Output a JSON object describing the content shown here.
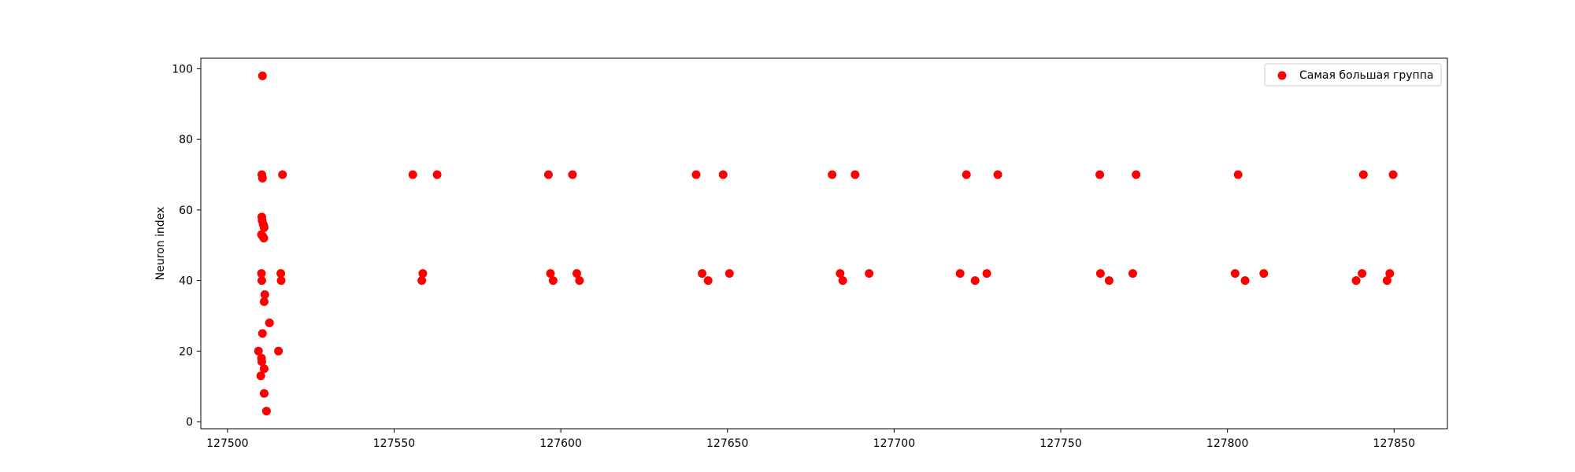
{
  "chart_data": {
    "type": "scatter",
    "title": "",
    "xlabel": "",
    "ylabel": "Neuron index",
    "xlim": [
      127492,
      127866
    ],
    "ylim": [
      -2,
      103
    ],
    "xticks": [
      127500,
      127550,
      127600,
      127650,
      127700,
      127750,
      127800,
      127850
    ],
    "yticks": [
      0,
      20,
      40,
      60,
      80,
      100
    ],
    "grid": false,
    "legend_position": "upper right",
    "series": [
      {
        "name": "Самая большая группа",
        "color": "#ff0000",
        "points": [
          [
            127510.5,
            98
          ],
          [
            127510.3,
            70
          ],
          [
            127510.5,
            69
          ],
          [
            127516.5,
            70
          ],
          [
            127510.3,
            58
          ],
          [
            127510.4,
            57
          ],
          [
            127510.7,
            56
          ],
          [
            127510.9,
            55.5
          ],
          [
            127511.0,
            55
          ],
          [
            127510.2,
            53
          ],
          [
            127510.6,
            52.5
          ],
          [
            127510.9,
            52
          ],
          [
            127510.2,
            42
          ],
          [
            127510.3,
            40
          ],
          [
            127516.0,
            42
          ],
          [
            127516.1,
            40
          ],
          [
            127511.2,
            36
          ],
          [
            127511.0,
            34
          ],
          [
            127512.6,
            28
          ],
          [
            127510.5,
            25
          ],
          [
            127509.3,
            20
          ],
          [
            127515.3,
            20
          ],
          [
            127510.2,
            18
          ],
          [
            127510.3,
            17
          ],
          [
            127511.0,
            15
          ],
          [
            127510.0,
            13
          ],
          [
            127511.0,
            8
          ],
          [
            127511.7,
            3
          ],
          [
            127555.6,
            70
          ],
          [
            127562.9,
            70
          ],
          [
            127558.6,
            42
          ],
          [
            127558.3,
            40
          ],
          [
            127596.3,
            70
          ],
          [
            127603.5,
            70
          ],
          [
            127596.9,
            42
          ],
          [
            127597.7,
            40
          ],
          [
            127604.8,
            42
          ],
          [
            127605.6,
            40
          ],
          [
            127640.6,
            70
          ],
          [
            127648.7,
            70
          ],
          [
            127642.4,
            42
          ],
          [
            127644.2,
            40
          ],
          [
            127650.6,
            42
          ],
          [
            127681.4,
            70
          ],
          [
            127688.3,
            70
          ],
          [
            127683.8,
            42
          ],
          [
            127684.6,
            40
          ],
          [
            127692.5,
            42
          ],
          [
            127721.7,
            70
          ],
          [
            127731.1,
            70
          ],
          [
            127719.8,
            42
          ],
          [
            127724.3,
            40
          ],
          [
            127727.8,
            42
          ],
          [
            127761.7,
            70
          ],
          [
            127772.6,
            70
          ],
          [
            127761.9,
            42
          ],
          [
            127764.5,
            40
          ],
          [
            127771.6,
            42
          ],
          [
            127803.2,
            70
          ],
          [
            127802.3,
            42
          ],
          [
            127805.3,
            40
          ],
          [
            127810.9,
            42
          ],
          [
            127840.8,
            70
          ],
          [
            127849.7,
            70
          ],
          [
            127838.6,
            40
          ],
          [
            127840.4,
            42
          ],
          [
            127847.9,
            40
          ],
          [
            127848.7,
            42
          ]
        ]
      }
    ]
  }
}
